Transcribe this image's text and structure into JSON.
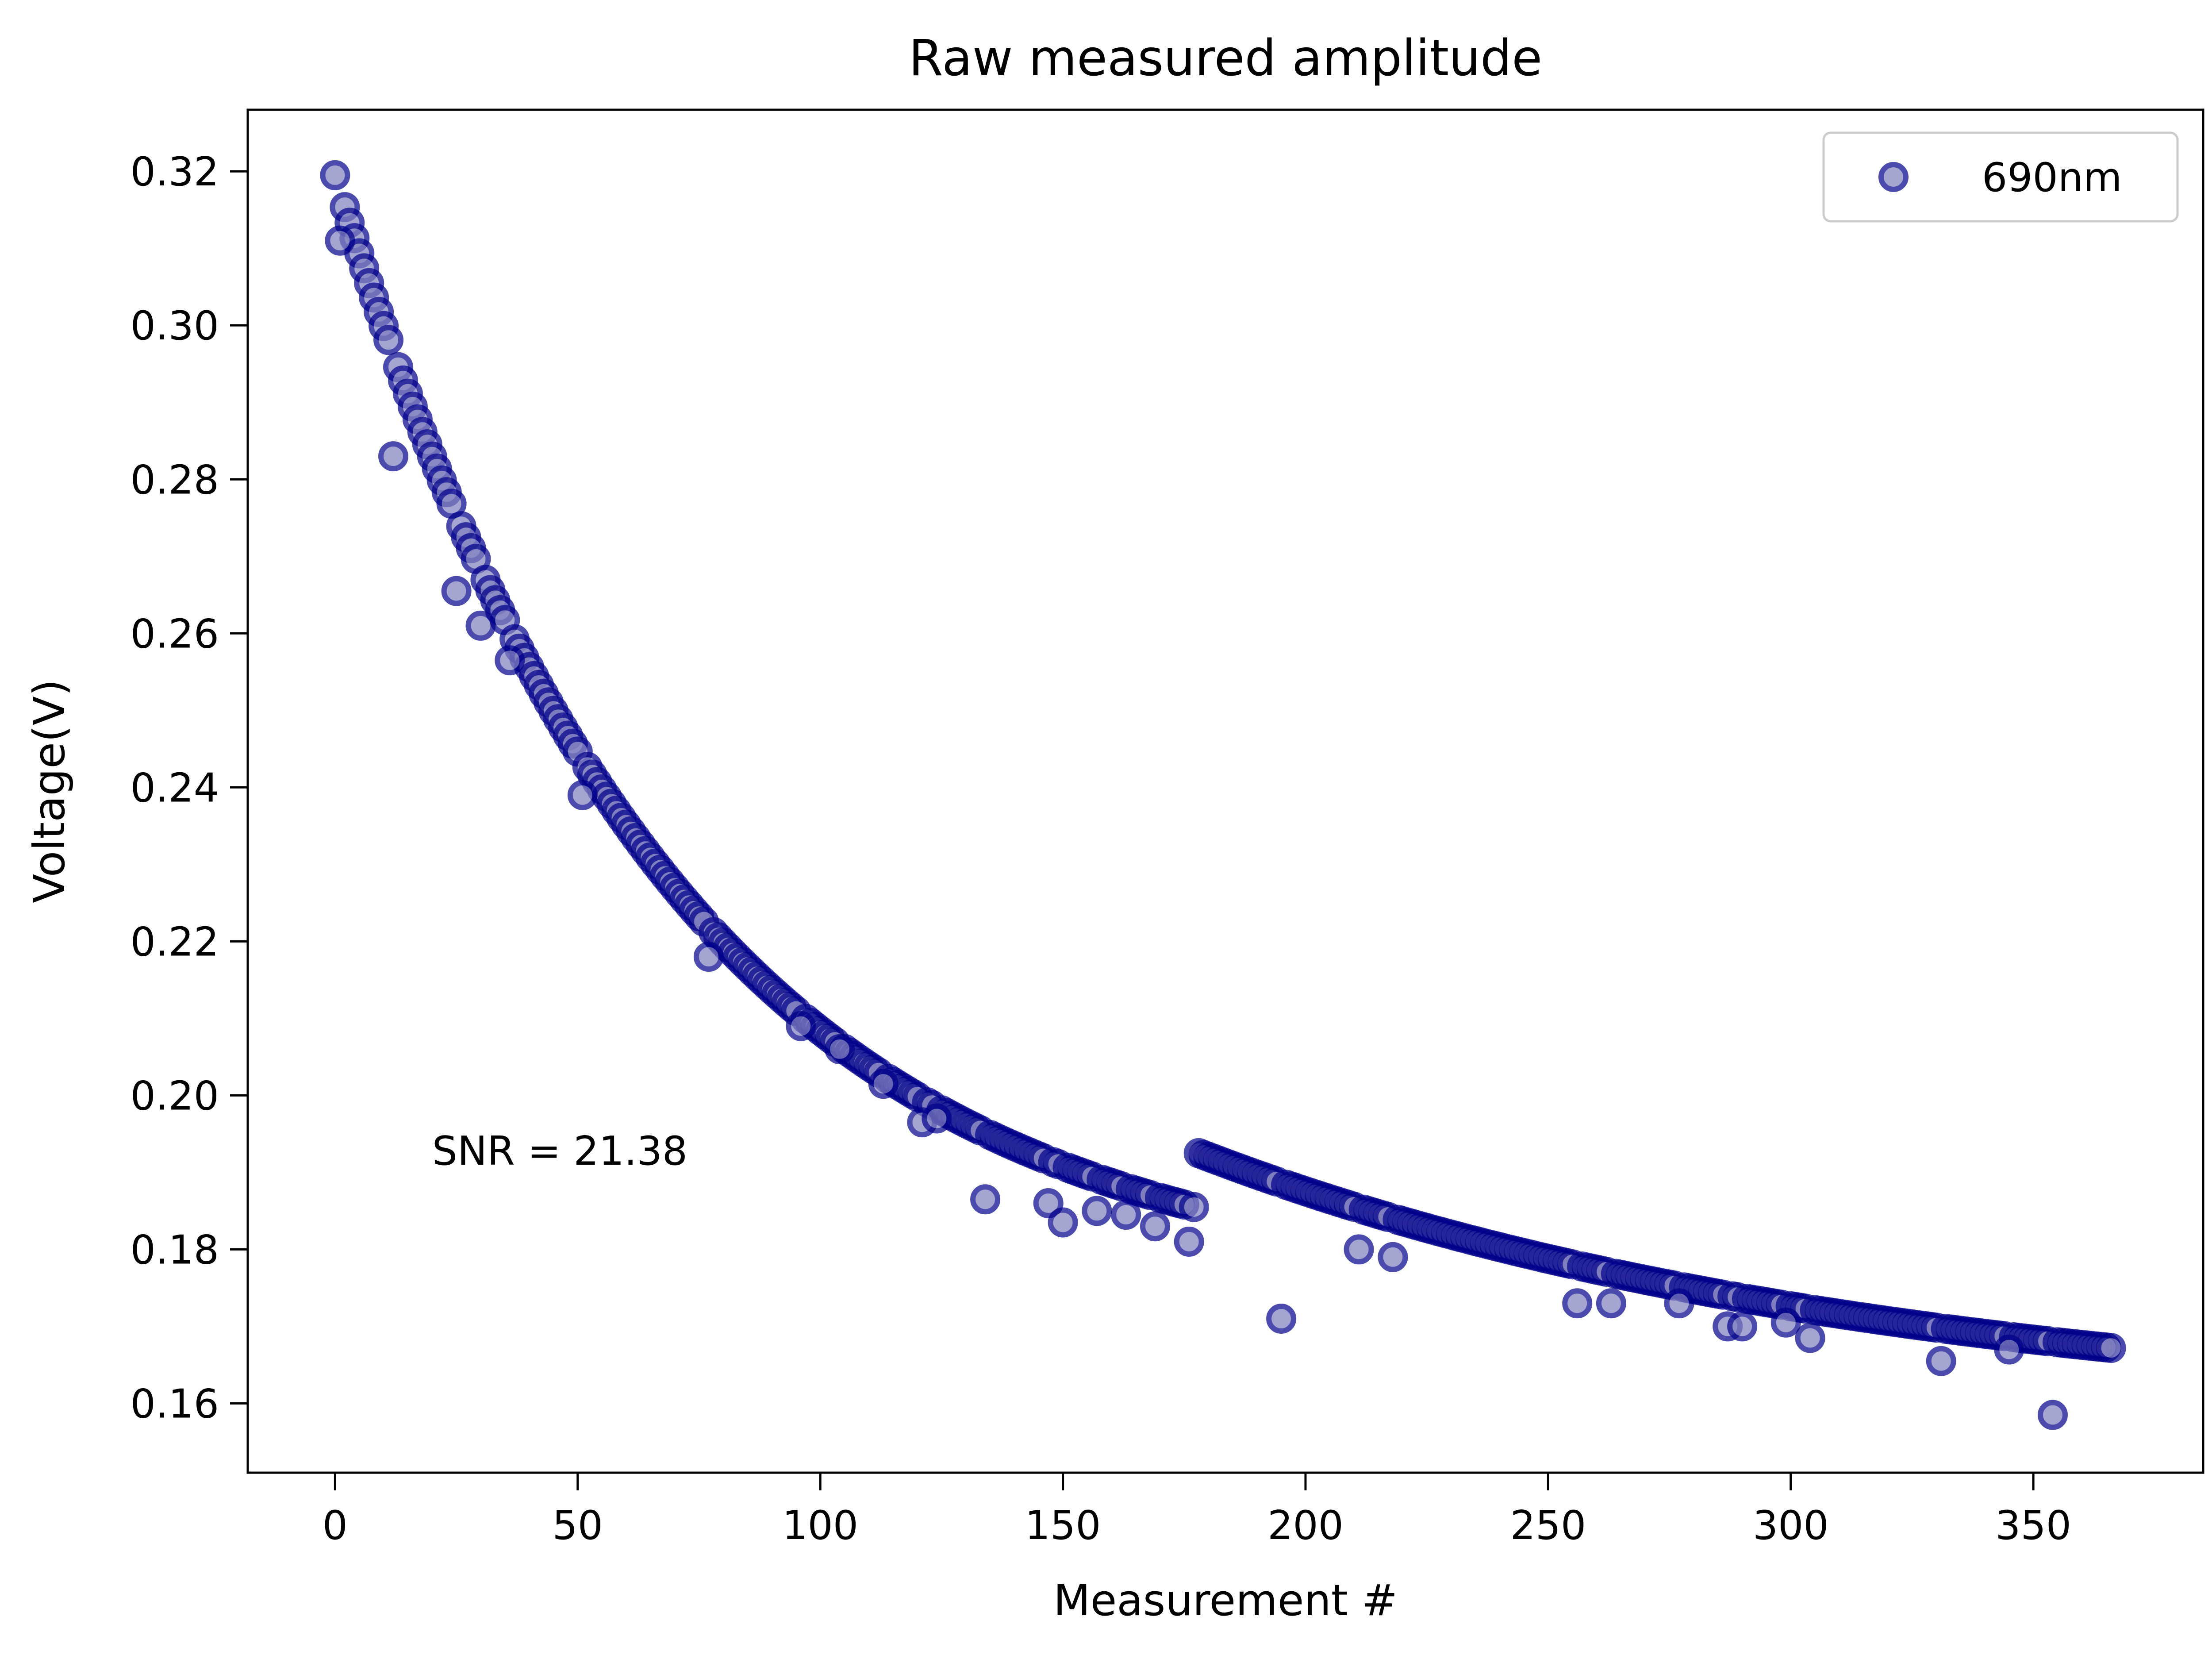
{
  "chart_data": {
    "type": "scatter",
    "title": "Raw measured amplitude",
    "xlabel": "Measurement #",
    "ylabel": "Voltage(V)",
    "xlim": [
      -18,
      385
    ],
    "ylim": [
      0.151,
      0.328
    ],
    "xticks": [
      0,
      50,
      100,
      150,
      200,
      250,
      300,
      350
    ],
    "yticks": [
      0.16,
      0.18,
      0.2,
      0.22,
      0.24,
      0.26,
      0.28,
      0.3,
      0.32
    ],
    "xtick_labels": [
      "0",
      "50",
      "100",
      "150",
      "200",
      "250",
      "300",
      "350"
    ],
    "ytick_labels": [
      "0.16",
      "0.18",
      "0.20",
      "0.22",
      "0.24",
      "0.26",
      "0.28",
      "0.30",
      "0.32"
    ],
    "grid": false,
    "legend": {
      "position": "top-right",
      "entries": [
        "690nm"
      ]
    },
    "annotation": {
      "text": "SNR = 21.38",
      "x": 20,
      "y": 0.191
    },
    "series": [
      {
        "name": "690nm",
        "marker_fill": "#8080c0",
        "marker_edge": "#00008b",
        "segments": [
          {
            "x_start": 0,
            "x_end": 177,
            "y_start": 0.3195,
            "y_end": 0.1855,
            "k": 0.0145
          },
          {
            "x_start": 178,
            "x_end": 366,
            "y_start": 0.1925,
            "y_end": 0.1672,
            "k": 0.00707
          }
        ],
        "outliers": [
          [
            1,
            0.311
          ],
          [
            12,
            0.283
          ],
          [
            25,
            0.2655
          ],
          [
            30,
            0.261
          ],
          [
            36,
            0.2565
          ],
          [
            51,
            0.239
          ],
          [
            77,
            0.218
          ],
          [
            96,
            0.209
          ],
          [
            104,
            0.206
          ],
          [
            113,
            0.2015
          ],
          [
            121,
            0.1965
          ],
          [
            124,
            0.197
          ],
          [
            134,
            0.1865
          ],
          [
            147,
            0.186
          ],
          [
            150,
            0.1835
          ],
          [
            157,
            0.185
          ],
          [
            163,
            0.1845
          ],
          [
            169,
            0.183
          ],
          [
            176,
            0.181
          ],
          [
            195,
            0.171
          ],
          [
            211,
            0.18
          ],
          [
            218,
            0.179
          ],
          [
            256,
            0.173
          ],
          [
            263,
            0.173
          ],
          [
            277,
            0.173
          ],
          [
            287,
            0.17
          ],
          [
            290,
            0.17
          ],
          [
            299,
            0.1705
          ],
          [
            304,
            0.1685
          ],
          [
            331,
            0.1655
          ],
          [
            345,
            0.167
          ],
          [
            354,
            0.1585
          ]
        ]
      }
    ]
  }
}
